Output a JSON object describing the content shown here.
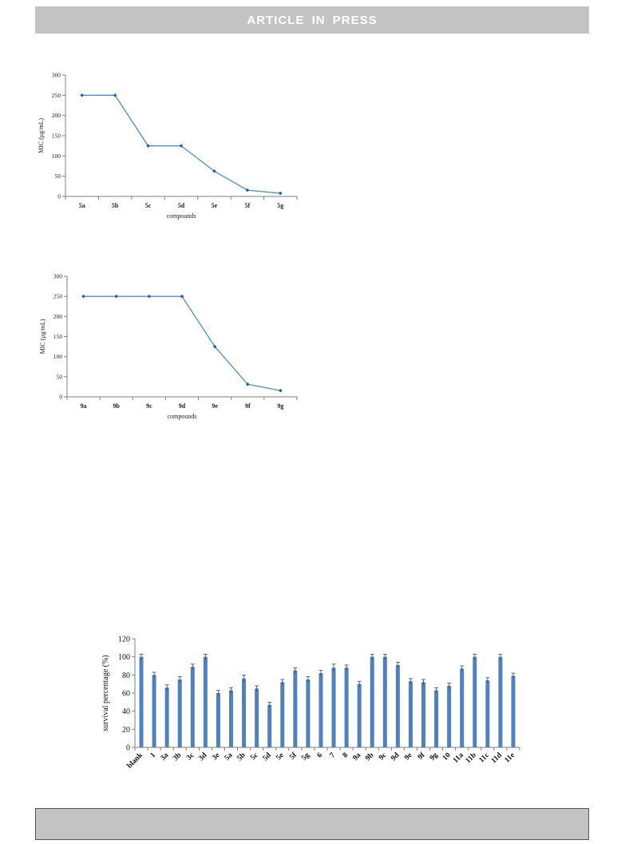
{
  "header": {
    "banner_text": "ARTICLE IN PRESS"
  },
  "chart_data": [
    {
      "type": "line",
      "categories": [
        "5a",
        "5b",
        "5c",
        "5d",
        "5e",
        "5f",
        "5g"
      ],
      "values": [
        250,
        250,
        125,
        125,
        62.5,
        15.6,
        7.8
      ],
      "xlabel": "compounds",
      "ylabel": "MIC  (μg/mL)",
      "ylim": [
        0,
        300
      ],
      "yticks": [
        0,
        50,
        100,
        150,
        200,
        250,
        300
      ],
      "color": "#4a8fd4",
      "marker_color": "#1f5fa8",
      "grid": false
    },
    {
      "type": "line",
      "categories": [
        "9a",
        "9b",
        "9c",
        "9d",
        "9e",
        "9f",
        "9g"
      ],
      "values": [
        250,
        250,
        250,
        250,
        125,
        31.2,
        15.6
      ],
      "xlabel": "compounds",
      "ylabel": "MIC  (μg/mL)",
      "ylim": [
        0,
        300
      ],
      "yticks": [
        0,
        50,
        100,
        150,
        200,
        250,
        300
      ],
      "color": "#4a8fd4",
      "marker_color": "#1f5fa8",
      "grid": false
    },
    {
      "type": "bar",
      "categories": [
        "blank",
        "1",
        "3a",
        "3b",
        "3c",
        "3d",
        "3e",
        "5a",
        "5b",
        "5c",
        "5d",
        "5e",
        "5f",
        "5g",
        "6",
        "7",
        "8",
        "9a",
        "9b",
        "9c",
        "9d",
        "9e",
        "9f",
        "9g",
        "10",
        "11a",
        "11b",
        "11c",
        "11d",
        "11e"
      ],
      "values": [
        100,
        80,
        66,
        75,
        89,
        100,
        60,
        63,
        76,
        65,
        47,
        72,
        85,
        75,
        82,
        88,
        88,
        70,
        100,
        100,
        91,
        73,
        72,
        63,
        68,
        87,
        100,
        74,
        100,
        79
      ],
      "errors": [
        3,
        3,
        3,
        3,
        3,
        3,
        3,
        3,
        4,
        3,
        3,
        3,
        3,
        3,
        3,
        4,
        3,
        3,
        3,
        3,
        3,
        3,
        3,
        3,
        3,
        3,
        3,
        3,
        3,
        3
      ],
      "ylabel": "survival  percentage (%)",
      "xlabel": "",
      "ylim": [
        0,
        120
      ],
      "yticks": [
        0,
        20,
        40,
        60,
        80,
        100,
        120
      ],
      "color": "#4f81bd",
      "grid": false
    }
  ]
}
